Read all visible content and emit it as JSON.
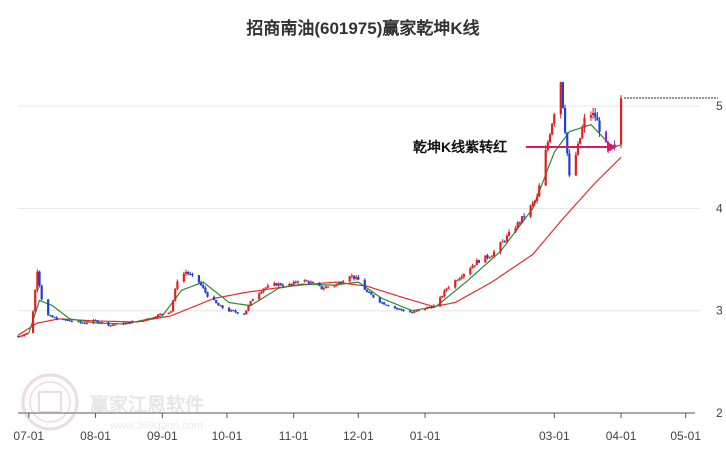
{
  "chart_data": {
    "type": "candlestick",
    "title": "招商南油(601975)赢家乾坤K线",
    "ylim": [
      2,
      5.5
    ],
    "yticks": [
      2,
      3,
      4,
      5
    ],
    "xticks": [
      "07-01",
      "08-01",
      "09-01",
      "10-01",
      "11-01",
      "12-01",
      "01-01",
      "03-01",
      "04-01",
      "05-01"
    ],
    "grid": true,
    "last_close": 5.08,
    "annotation": {
      "text": "乾坤K线紫转红",
      "target_price": 4.6
    },
    "colors": {
      "up": "#e02020",
      "down": "#2040d0",
      "signal": "#8a2be2",
      "ma_short": "#2e8b2e",
      "ma_long": "#e03030",
      "arrow": "#d81b60",
      "grid": "#e6e6e6"
    },
    "anchors": [
      [
        "06-26",
        2.75
      ],
      [
        "06-30",
        2.78
      ],
      [
        "07-03",
        3.0
      ],
      [
        "07-05",
        3.4
      ],
      [
        "07-07",
        3.12
      ],
      [
        "07-10",
        2.95
      ],
      [
        "07-14",
        2.92
      ],
      [
        "07-20",
        2.9
      ],
      [
        "07-26",
        2.88
      ],
      [
        "08-01",
        2.9
      ],
      [
        "08-08",
        2.86
      ],
      [
        "08-15",
        2.88
      ],
      [
        "08-22",
        2.9
      ],
      [
        "08-29",
        2.95
      ],
      [
        "09-05",
        3.0
      ],
      [
        "09-08",
        3.3
      ],
      [
        "09-12",
        3.38
      ],
      [
        "09-18",
        3.28
      ],
      [
        "09-22",
        3.15
      ],
      [
        "09-27",
        3.05
      ],
      [
        "10-02",
        3.0
      ],
      [
        "10-09",
        2.97
      ],
      [
        "10-13",
        3.12
      ],
      [
        "10-18",
        3.22
      ],
      [
        "10-24",
        3.26
      ],
      [
        "10-31",
        3.25
      ],
      [
        "11-03",
        3.3
      ],
      [
        "11-08",
        3.28
      ],
      [
        "11-14",
        3.22
      ],
      [
        "11-21",
        3.26
      ],
      [
        "11-27",
        3.35
      ],
      [
        "12-01",
        3.3
      ],
      [
        "12-05",
        3.18
      ],
      [
        "12-12",
        3.08
      ],
      [
        "12-19",
        3.02
      ],
      [
        "12-26",
        2.98
      ],
      [
        "01-02",
        3.03
      ],
      [
        "01-06",
        3.05
      ],
      [
        "01-11",
        3.22
      ],
      [
        "01-18",
        3.35
      ],
      [
        "01-25",
        3.48
      ],
      [
        "02-01",
        3.55
      ],
      [
        "02-08",
        3.72
      ],
      [
        "02-15",
        3.9
      ],
      [
        "02-22",
        4.1
      ],
      [
        "02-26",
        4.55
      ],
      [
        "03-01",
        4.95
      ],
      [
        "03-04",
        5.25
      ],
      [
        "03-08",
        4.3
      ],
      [
        "03-12",
        4.6
      ],
      [
        "03-16",
        4.95
      ],
      [
        "03-20",
        4.9
      ],
      [
        "03-26",
        4.55
      ],
      [
        "03-29",
        4.6
      ],
      [
        "04-01",
        5.08
      ]
    ],
    "ma_short": [
      [
        "06-26",
        2.74
      ],
      [
        "07-01",
        2.78
      ],
      [
        "07-06",
        3.1
      ],
      [
        "07-12",
        3.05
      ],
      [
        "07-20",
        2.92
      ],
      [
        "08-01",
        2.88
      ],
      [
        "08-15",
        2.87
      ],
      [
        "09-01",
        2.95
      ],
      [
        "09-10",
        3.2
      ],
      [
        "09-20",
        3.28
      ],
      [
        "10-02",
        3.08
      ],
      [
        "10-12",
        3.05
      ],
      [
        "10-25",
        3.22
      ],
      [
        "11-05",
        3.26
      ],
      [
        "11-20",
        3.25
      ],
      [
        "12-01",
        3.28
      ],
      [
        "12-12",
        3.12
      ],
      [
        "12-26",
        3.0
      ],
      [
        "01-06",
        3.04
      ],
      [
        "01-20",
        3.28
      ],
      [
        "02-05",
        3.58
      ],
      [
        "02-20",
        4.0
      ],
      [
        "03-01",
        4.55
      ],
      [
        "03-08",
        4.75
      ],
      [
        "03-18",
        4.82
      ],
      [
        "03-28",
        4.6
      ],
      [
        "04-01",
        4.62
      ]
    ],
    "ma_long": [
      [
        "06-26",
        2.76
      ],
      [
        "07-05",
        2.88
      ],
      [
        "07-15",
        2.92
      ],
      [
        "08-01",
        2.9
      ],
      [
        "08-20",
        2.89
      ],
      [
        "09-05",
        2.95
      ],
      [
        "09-25",
        3.12
      ],
      [
        "10-10",
        3.18
      ],
      [
        "10-30",
        3.24
      ],
      [
        "11-20",
        3.28
      ],
      [
        "12-05",
        3.24
      ],
      [
        "12-20",
        3.14
      ],
      [
        "01-05",
        3.04
      ],
      [
        "01-15",
        3.08
      ],
      [
        "02-01",
        3.28
      ],
      [
        "02-20",
        3.55
      ],
      [
        "03-05",
        3.9
      ],
      [
        "03-20",
        4.25
      ],
      [
        "04-01",
        4.5
      ]
    ]
  },
  "watermark": {
    "name": "赢家江恩软件",
    "site": "www.369gann.com"
  }
}
